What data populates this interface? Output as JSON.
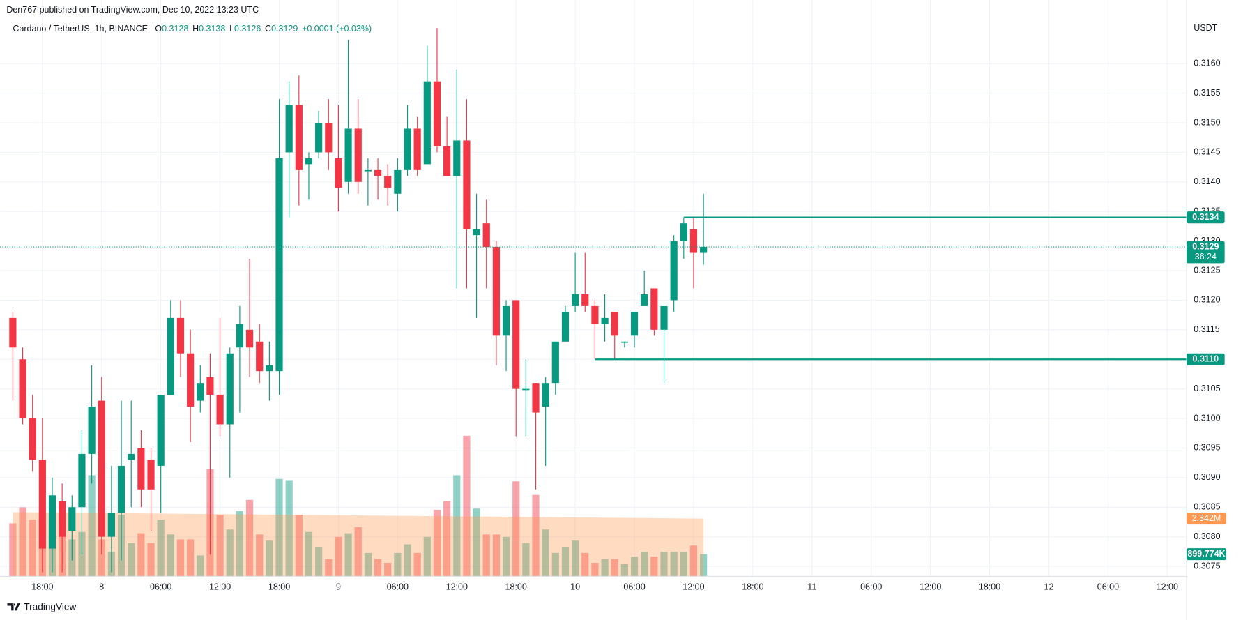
{
  "header": "Den767 published on TradingView.com, Dec 10, 2022 13:23 UTC",
  "footer": "TradingView",
  "chart_data": {
    "type": "candlestick",
    "symbol": "Cardano / TetherUS, 1h, BINANCE",
    "legend_labels": [
      "O",
      "H",
      "L",
      "C"
    ],
    "legend_change": "+0.0001 (+0.03%)",
    "currency": "USDT",
    "countdown": "36:24",
    "up_color": "#089981",
    "down_color": "#f23645",
    "volume_ma_color": "#ff9850",
    "grid": true,
    "xlim": [
      -0.64,
      118.96
    ],
    "xticks": [
      {
        "value": 3,
        "label": "18:00"
      },
      {
        "value": 9,
        "label": "8"
      },
      {
        "value": 15,
        "label": "06:00"
      },
      {
        "value": 21,
        "label": "12:00"
      },
      {
        "value": 27,
        "label": "18:00"
      },
      {
        "value": 33,
        "label": "9"
      },
      {
        "value": 39,
        "label": "06:00"
      },
      {
        "value": 45,
        "label": "12:00"
      },
      {
        "value": 51,
        "label": "18:00"
      },
      {
        "value": 57,
        "label": "10"
      },
      {
        "value": 63,
        "label": "06:00"
      },
      {
        "value": 69,
        "label": "12:00"
      },
      {
        "value": 75,
        "label": "18:00"
      },
      {
        "value": 81,
        "label": "11"
      },
      {
        "value": 87,
        "label": "06:00"
      },
      {
        "value": 93,
        "label": "12:00"
      },
      {
        "value": 99,
        "label": "18:00"
      },
      {
        "value": 105,
        "label": "12"
      },
      {
        "value": 111,
        "label": "06:00"
      },
      {
        "value": 117,
        "label": "12:00"
      }
    ],
    "ylim": [
      0.30733,
      0.3167
    ],
    "yticks": [
      0.3075,
      {
        "value": 0.308,
        "label": "0.3080"
      },
      0.3085,
      {
        "value": 0.309,
        "label": "0.3090"
      },
      0.3095,
      {
        "value": 0.31,
        "label": "0.3100"
      },
      0.3105,
      {
        "value": 0.311,
        "label": "0.3110"
      },
      0.3115,
      {
        "value": 0.312,
        "label": "0.3120"
      },
      0.3125,
      {
        "value": 0.313,
        "label": "0.3130"
      },
      0.3135,
      {
        "value": 0.314,
        "label": "0.3140"
      },
      0.3145,
      {
        "value": 0.315,
        "label": "0.3150"
      },
      0.3155,
      {
        "value": 0.316,
        "label": "0.3160"
      }
    ],
    "levels": [
      0.3134,
      {
        "value": 0.311,
        "label": "0.3110"
      }
    ],
    "open": [
      0.3117,
      0.311,
      0.31,
      0.3093,
      0.3078,
      0.3086,
      0.3081,
      0.3085,
      0.3094,
      0.3103,
      0.308,
      0.3084,
      0.3093,
      0.3095,
      0.3093,
      0.3092,
      0.3104,
      0.3117,
      0.3111,
      0.3103,
      0.3107,
      0.3104,
      0.3099,
      0.3112,
      0.3115,
      0.3113,
      0.3108,
      0.3108,
      0.3145,
      0.3153,
      0.3143,
      0.3145,
      0.315,
      0.3144,
      0.314,
      0.3149,
      0.3142,
      0.3142,
      0.3141,
      0.3138,
      0.3142,
      0.3149,
      0.3143,
      0.3157,
      0.3146,
      0.3141,
      0.3147,
      0.3131,
      0.3133,
      0.3129,
      0.3114,
      0.312,
      0.3105,
      0.3106,
      0.3102,
      0.3106,
      0.3113,
      0.3119,
      0.3121,
      0.3119,
      0.3116,
      0.3118,
      0.3113,
      0.3114,
      0.3119,
      0.3122,
      0.3115,
      0.312,
      0.313,
      0.3132,
      0.3128
    ],
    "high": [
      0.3118,
      0.3112,
      0.3104,
      0.31,
      0.309,
      0.3089,
      0.3087,
      0.3098,
      0.3109,
      0.3107,
      0.3092,
      0.3103,
      0.3103,
      0.3098,
      0.3095,
      0.3104,
      0.312,
      0.312,
      0.3115,
      0.3109,
      0.3111,
      0.3117,
      0.3112,
      0.3119,
      0.3127,
      0.3116,
      0.3113,
      0.3154,
      0.3157,
      0.3158,
      0.3145,
      0.3152,
      0.3154,
      0.3153,
      0.3164,
      0.3154,
      0.3144,
      0.3144,
      0.3143,
      0.3144,
      0.3153,
      0.3151,
      0.3163,
      0.3166,
      0.3151,
      0.3159,
      0.3154,
      0.3138,
      0.3137,
      0.313,
      0.312,
      0.312,
      0.311,
      0.3106,
      0.3107,
      0.3113,
      0.3119,
      0.3128,
      0.3128,
      0.312,
      0.3121,
      0.3118,
      0.3113,
      0.3118,
      0.3125,
      0.3122,
      0.3119,
      0.3131,
      0.3134,
      0.3134,
      0.3138
    ],
    "low": [
      0.3103,
      0.3099,
      0.3091,
      0.3074,
      0.3074,
      0.3074,
      0.3076,
      0.3077,
      0.3089,
      0.3077,
      0.3074,
      0.3076,
      0.3085,
      0.3085,
      0.3081,
      0.3084,
      0.3104,
      0.3107,
      0.3096,
      0.3101,
      0.3077,
      0.3097,
      0.309,
      0.3101,
      0.3107,
      0.3106,
      0.3103,
      0.3104,
      0.3134,
      0.3136,
      0.3137,
      0.3144,
      0.3142,
      0.3135,
      0.3138,
      0.3138,
      0.3136,
      0.3137,
      0.3136,
      0.3135,
      0.3141,
      0.3141,
      0.3143,
      0.3145,
      0.3141,
      0.3122,
      0.3122,
      0.3117,
      0.3122,
      0.3109,
      0.3108,
      0.3097,
      0.3097,
      0.3088,
      0.3092,
      0.3104,
      0.3113,
      0.3118,
      0.3118,
      0.311,
      0.3113,
      0.311,
      0.3112,
      0.3112,
      0.3119,
      0.3114,
      0.3106,
      0.3118,
      0.3127,
      0.3122,
      0.3126
    ],
    "close": [
      0.3112,
      0.31,
      0.3093,
      0.3078,
      0.3087,
      0.308,
      0.3085,
      0.3094,
      0.3102,
      0.308,
      0.3084,
      0.3092,
      0.3094,
      0.3088,
      0.3088,
      0.3104,
      0.3117,
      0.3111,
      0.3102,
      0.3106,
      0.3104,
      0.3099,
      0.3111,
      0.3116,
      0.3112,
      0.3108,
      0.3109,
      0.3144,
      0.3153,
      0.3142,
      0.3144,
      0.315,
      0.3145,
      0.3139,
      0.3149,
      0.314,
      0.3142,
      0.3141,
      0.3139,
      0.3142,
      0.3149,
      0.3142,
      0.3157,
      0.3146,
      0.3141,
      0.3147,
      0.3132,
      0.3132,
      0.3129,
      0.3114,
      0.3119,
      0.3105,
      0.3105,
      0.3101,
      0.3106,
      0.3113,
      0.3118,
      0.3121,
      0.3119,
      0.3116,
      0.3117,
      0.3114,
      0.3113,
      0.3118,
      0.3121,
      0.3115,
      0.3119,
      0.313,
      0.3133,
      0.3128,
      0.3129
    ],
    "volume_lim": [
      0,
      22460000
    ],
    "volume": [
      2150000,
      2800000,
      2300000,
      1200000,
      2150000,
      2150000,
      1500000,
      1800000,
      4100000,
      1500000,
      1000000,
      2500000,
      1350000,
      1750000,
      1350000,
      2300000,
      1700000,
      1500000,
      1500000,
      850000,
      4350000,
      2500000,
      1900000,
      2650000,
      3100000,
      1700000,
      1450000,
      3950000,
      3900000,
      2500000,
      1800000,
      1200000,
      700000,
      1600000,
      1750000,
      2000000,
      950000,
      700000,
      550000,
      950000,
      1300000,
      950000,
      1600000,
      2700000,
      3050000,
      4100000,
      5700000,
      2750000,
      1700000,
      1700000,
      1600000,
      3850000,
      1350000,
      3300000,
      1900000,
      950000,
      1200000,
      1450000,
      950000,
      550000,
      700000,
      700000,
      500000,
      800000,
      1000000,
      800000,
      1000000,
      1000000,
      1000000,
      1250000,
      899774
    ],
    "volume_last_label": "899.774K",
    "volume_ma": [
      2600000,
      2596000,
      2592000,
      2589000,
      2585000,
      2581000,
      2578000,
      2574000,
      2570000,
      2567000,
      2563000,
      2559000,
      2556000,
      2552000,
      2548000,
      2545000,
      2541000,
      2537000,
      2534000,
      2530000,
      2526000,
      2523000,
      2519000,
      2515000,
      2512000,
      2508000,
      2504000,
      2501000,
      2497000,
      2493000,
      2490000,
      2486000,
      2482000,
      2479000,
      2475000,
      2471000,
      2467000,
      2464000,
      2460000,
      2456000,
      2453000,
      2449000,
      2445000,
      2442000,
      2438000,
      2434000,
      2431000,
      2427000,
      2423000,
      2420000,
      2416000,
      2412000,
      2409000,
      2405000,
      2401000,
      2398000,
      2394000,
      2390000,
      2387000,
      2383000,
      2379000,
      2376000,
      2372000,
      2368000,
      2365000,
      2361000,
      2357000,
      2354000,
      2350000,
      2346000,
      2342000
    ],
    "volume_ma_last_label": "2.342M"
  }
}
